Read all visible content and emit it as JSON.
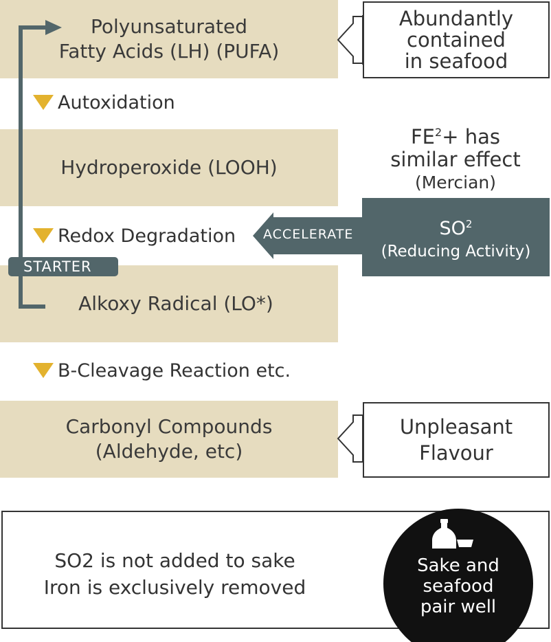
{
  "boxes": {
    "pufa_line1": "Polyunsaturated",
    "pufa_line2": "Fatty Acids (LH) (PUFA)",
    "looh": "Hydroperoxide (LOOH)",
    "lo": "Alkoxy Radical (LO*)",
    "carbonyl_line1": "Carbonyl Compounds",
    "carbonyl_line2": "(Aldehyde, etc)"
  },
  "steps": {
    "autoxidation": "Autoxidation",
    "redox": "Redox Degradation",
    "cleavage": "B-Cleavage Reaction etc."
  },
  "callouts": {
    "seafood_line1": "Abundantly",
    "seafood_line2": "contained",
    "seafood_line3": "in seafood",
    "flavour_line1": "Unpleasant",
    "flavour_line2": "Flavour"
  },
  "fe_note": {
    "base": "FE",
    "superscript": "2",
    "rest": "+ has",
    "line2": "similar effect",
    "line3": "(Mercian)"
  },
  "so2": {
    "base": "SO",
    "superscript": "2",
    "line2": "(Reducing Activity)",
    "accelerate_label": "ACCELERATE"
  },
  "starter_label": "STARTER",
  "bottom": {
    "line1": "SO2 is not added to sake",
    "line2": "Iron is exclusively removed",
    "circle_line1": "Sake and",
    "circle_line2": "seafood",
    "circle_line3": "pair well"
  },
  "colors": {
    "beige": "#e6dcbf",
    "slate": "#52666a",
    "gold": "#e3b22e",
    "chevron": "#e8dfc0",
    "text": "#333333"
  },
  "icons": [
    "sake-bottle-icon",
    "sake-cup-icon",
    "double-chevron-icon",
    "triangle-down-icon"
  ]
}
